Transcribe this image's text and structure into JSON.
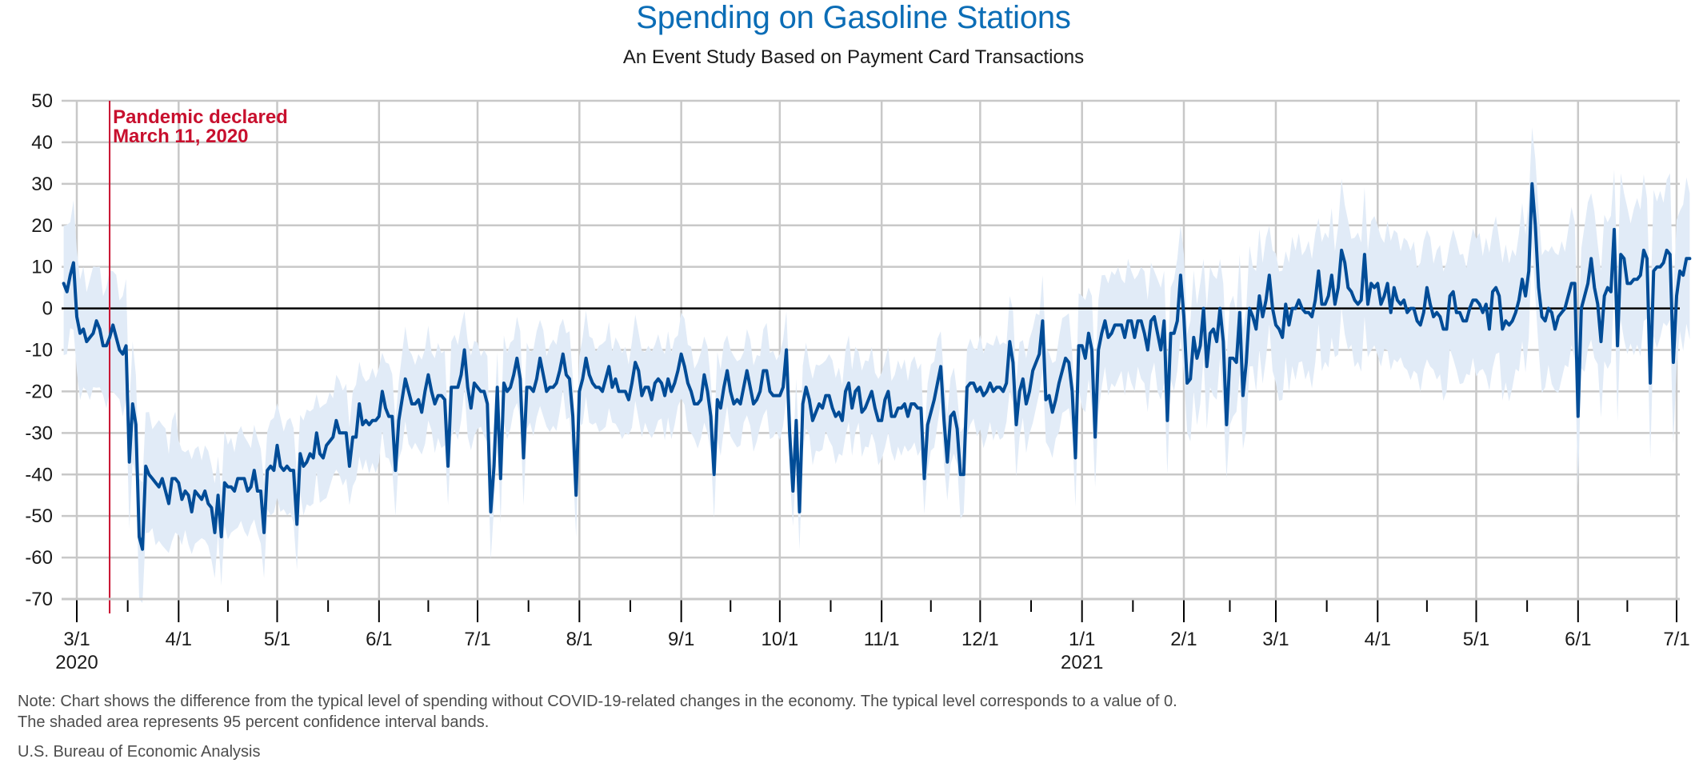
{
  "header": {
    "title": "Spending on Gasoline Stations",
    "subtitle": "An Event Study Based on Payment Card Transactions"
  },
  "footer": {
    "note_line1": "Note: Chart shows the difference from the typical level of spending without COVID-19-related changes in the economy. The typical level corresponds to a value of 0.",
    "note_line2": "The shaded area represents 95 percent confidence interval bands.",
    "source": "U.S. Bureau of Economic Analysis"
  },
  "colors": {
    "title": "#0b6db6",
    "line": "#004c97",
    "band": "#e1ebf7",
    "annotation": "#c8102e",
    "grid": "#c8c8c8",
    "zero_line": "#000000"
  },
  "chart_data": {
    "type": "line",
    "title": "Spending on Gasoline Stations",
    "subtitle": "An Event Study Based on Payment Card Transactions",
    "xlabel": "",
    "ylabel": "",
    "ylim": [
      -70,
      50
    ],
    "yticks": [
      50,
      40,
      30,
      20,
      10,
      0,
      -10,
      -20,
      -30,
      -40,
      -50,
      -60,
      -70
    ],
    "grid": true,
    "x_start_date": "2020-02-26",
    "x_range": [
      "2020-02-26",
      "2021-07-01"
    ],
    "xticks": [
      {
        "date": "2020-03-01",
        "label": "3/1",
        "year": "2020"
      },
      {
        "date": "2020-04-01",
        "label": "4/1"
      },
      {
        "date": "2020-05-01",
        "label": "5/1"
      },
      {
        "date": "2020-06-01",
        "label": "6/1"
      },
      {
        "date": "2020-07-01",
        "label": "7/1"
      },
      {
        "date": "2020-08-01",
        "label": "8/1"
      },
      {
        "date": "2020-09-01",
        "label": "9/1"
      },
      {
        "date": "2020-10-01",
        "label": "10/1"
      },
      {
        "date": "2020-11-01",
        "label": "11/1"
      },
      {
        "date": "2020-12-01",
        "label": "12/1"
      },
      {
        "date": "2021-01-01",
        "label": "1/1",
        "year": "2021"
      },
      {
        "date": "2021-02-01",
        "label": "2/1"
      },
      {
        "date": "2021-03-01",
        "label": "3/1"
      },
      {
        "date": "2021-04-01",
        "label": "4/1"
      },
      {
        "date": "2021-05-01",
        "label": "5/1"
      },
      {
        "date": "2021-06-01",
        "label": "6/1"
      },
      {
        "date": "2021-07-01",
        "label": "7/1"
      }
    ],
    "annotation": {
      "date": "2020-03-11",
      "line1": "Pandemic declared",
      "line2": "March 11, 2020"
    },
    "series": [
      {
        "name": "Difference from typical spending (daily)",
        "frequency": "daily",
        "values": [
          6,
          4,
          8,
          11,
          -2,
          -6,
          -5,
          -8,
          -7,
          -6,
          -3,
          -5,
          -9,
          -9,
          -7,
          -4,
          -7,
          -10,
          -11,
          -9,
          -37,
          -23,
          -28,
          -55,
          -58,
          -38,
          -40,
          -41,
          -42,
          -43,
          -41,
          -44,
          -47,
          -41,
          -41,
          -42,
          -46,
          -44,
          -45,
          -49,
          -44,
          -45,
          -46,
          -44,
          -47,
          -48,
          -54,
          -45,
          -55,
          -42,
          -43,
          -43,
          -44,
          -41,
          -41,
          -41,
          -44,
          -43,
          -39,
          -44,
          -44,
          -54,
          -39,
          -38,
          -39,
          -33,
          -38,
          -39,
          -38,
          -39,
          -39,
          -52,
          -35,
          -38,
          -37,
          -35,
          -36,
          -30,
          -35,
          -36,
          -33,
          -32,
          -31,
          -27,
          -30,
          -30,
          -30,
          -38,
          -31,
          -31,
          -23,
          -28,
          -27,
          -28,
          -27,
          -27,
          -26,
          -20,
          -24,
          -26,
          -26,
          -39,
          -27,
          -22,
          -17,
          -20,
          -23,
          -23,
          -22,
          -25,
          -20,
          -16,
          -20,
          -23,
          -21,
          -21,
          -22,
          -38,
          -19,
          -19,
          -19,
          -16,
          -10,
          -19,
          -24,
          -18,
          -19,
          -20,
          -20,
          -23,
          -49,
          -38,
          -19,
          -41,
          -18,
          -20,
          -19,
          -16,
          -12,
          -17,
          -36,
          -19,
          -19,
          -20,
          -17,
          -12,
          -16,
          -20,
          -19,
          -19,
          -18,
          -15,
          -11,
          -16,
          -17,
          -26,
          -45,
          -20,
          -17,
          -12,
          -16,
          -18,
          -19,
          -19,
          -20,
          -17,
          -14,
          -19,
          -17,
          -20,
          -20,
          -20,
          -22,
          -18,
          -13,
          -15,
          -21,
          -19,
          -19,
          -22,
          -18,
          -17,
          -18,
          -21,
          -17,
          -20,
          -18,
          -15,
          -11,
          -14,
          -18,
          -20,
          -23,
          -23,
          -22,
          -16,
          -20,
          -26,
          -40,
          -22,
          -24,
          -19,
          -15,
          -20,
          -23,
          -22,
          -23,
          -19,
          -15,
          -19,
          -23,
          -22,
          -20,
          -15,
          -15,
          -20,
          -21,
          -21,
          -21,
          -19,
          -10,
          -30,
          -44,
          -27,
          -49,
          -23,
          -19,
          -22,
          -27,
          -25,
          -23,
          -24,
          -21,
          -21,
          -24,
          -26,
          -25,
          -27,
          -20,
          -18,
          -24,
          -20,
          -19,
          -25,
          -24,
          -22,
          -20,
          -24,
          -27,
          -27,
          -22,
          -20,
          -26,
          -26,
          -24,
          -24,
          -23,
          -26,
          -23,
          -23,
          -24,
          -24,
          -41,
          -28,
          -25,
          -22,
          -18,
          -14,
          -27,
          -37,
          -26,
          -25,
          -29,
          -40,
          -40,
          -19,
          -18,
          -18,
          -20,
          -19,
          -21,
          -20,
          -18,
          -20,
          -19,
          -19,
          -20,
          -18,
          -8,
          -13,
          -28,
          -20,
          -17,
          -23,
          -20,
          -15,
          -13,
          -11,
          -3,
          -22,
          -21,
          -25,
          -22,
          -18,
          -15,
          -12,
          -13,
          -20,
          -36,
          -9,
          -9,
          -12,
          -6,
          -10,
          -31,
          -10,
          -6,
          -3,
          -7,
          -6,
          -4,
          -4,
          -4,
          -7,
          -3,
          -3,
          -7,
          -3,
          -3,
          -6,
          -10,
          -3,
          -2,
          -6,
          -10,
          -3,
          -27,
          -6,
          -6,
          -3,
          8,
          -2,
          -18,
          -17,
          -7,
          -12,
          -9,
          0,
          -14,
          -6,
          -5,
          -8,
          0,
          -8,
          -28,
          -12,
          -12,
          -13,
          -1,
          -21,
          -13,
          0,
          -2,
          -5,
          3,
          -2,
          2,
          8,
          0,
          -4,
          -5,
          -7,
          1,
          -4,
          0,
          0,
          2,
          0,
          -1,
          -1,
          -2,
          2,
          9,
          1,
          1,
          3,
          8,
          1,
          5,
          14,
          11,
          5,
          4,
          2,
          1,
          2,
          13,
          1,
          6,
          5,
          6,
          1,
          3,
          6,
          -1,
          5,
          2,
          1,
          2,
          -1,
          0,
          0,
          -3,
          -4,
          -1,
          5,
          1,
          -2,
          -1,
          -2,
          -5,
          -5,
          3,
          4,
          -1,
          -1,
          -3,
          -3,
          0,
          2,
          2,
          1,
          -1,
          1,
          -5,
          4,
          5,
          3,
          -5,
          -3,
          -4,
          -3,
          -1,
          2,
          7,
          3,
          9,
          30,
          20,
          5,
          -2,
          -3,
          0,
          -1,
          -5,
          -2,
          -1,
          0,
          3,
          6,
          6,
          -26,
          0,
          3,
          6,
          12,
          5,
          1,
          -8,
          3,
          5,
          4,
          19,
          -9,
          13,
          12,
          6,
          6,
          7,
          7,
          8,
          14,
          12,
          -18,
          9,
          10,
          10,
          11,
          14,
          13,
          -13,
          3,
          9,
          8,
          12,
          12
        ]
      }
    ],
    "confidence_band": {
      "name": "95 percent confidence interval",
      "halfwidth_by_month": [
        {
          "month": "2020-02",
          "halfwidth": 15
        },
        {
          "month": "2020-03",
          "halfwidth": 14
        },
        {
          "month": "2020-04",
          "halfwidth": 11
        },
        {
          "month": "2020-05",
          "halfwidth": 11
        },
        {
          "month": "2020-06",
          "halfwidth": 11
        },
        {
          "month": "2020-07",
          "halfwidth": 10
        },
        {
          "month": "2020-08",
          "halfwidth": 10
        },
        {
          "month": "2020-09",
          "halfwidth": 10
        },
        {
          "month": "2020-10",
          "halfwidth": 10
        },
        {
          "month": "2020-11",
          "halfwidth": 10
        },
        {
          "month": "2020-12",
          "halfwidth": 11
        },
        {
          "month": "2021-01",
          "halfwidth": 13
        },
        {
          "month": "2021-02",
          "halfwidth": 14
        },
        {
          "month": "2021-03",
          "halfwidth": 15
        },
        {
          "month": "2021-04",
          "halfwidth": 15
        },
        {
          "month": "2021-05",
          "halfwidth": 16
        },
        {
          "month": "2021-06",
          "halfwidth": 17
        },
        {
          "month": "2021-07",
          "halfwidth": 17
        }
      ]
    }
  }
}
